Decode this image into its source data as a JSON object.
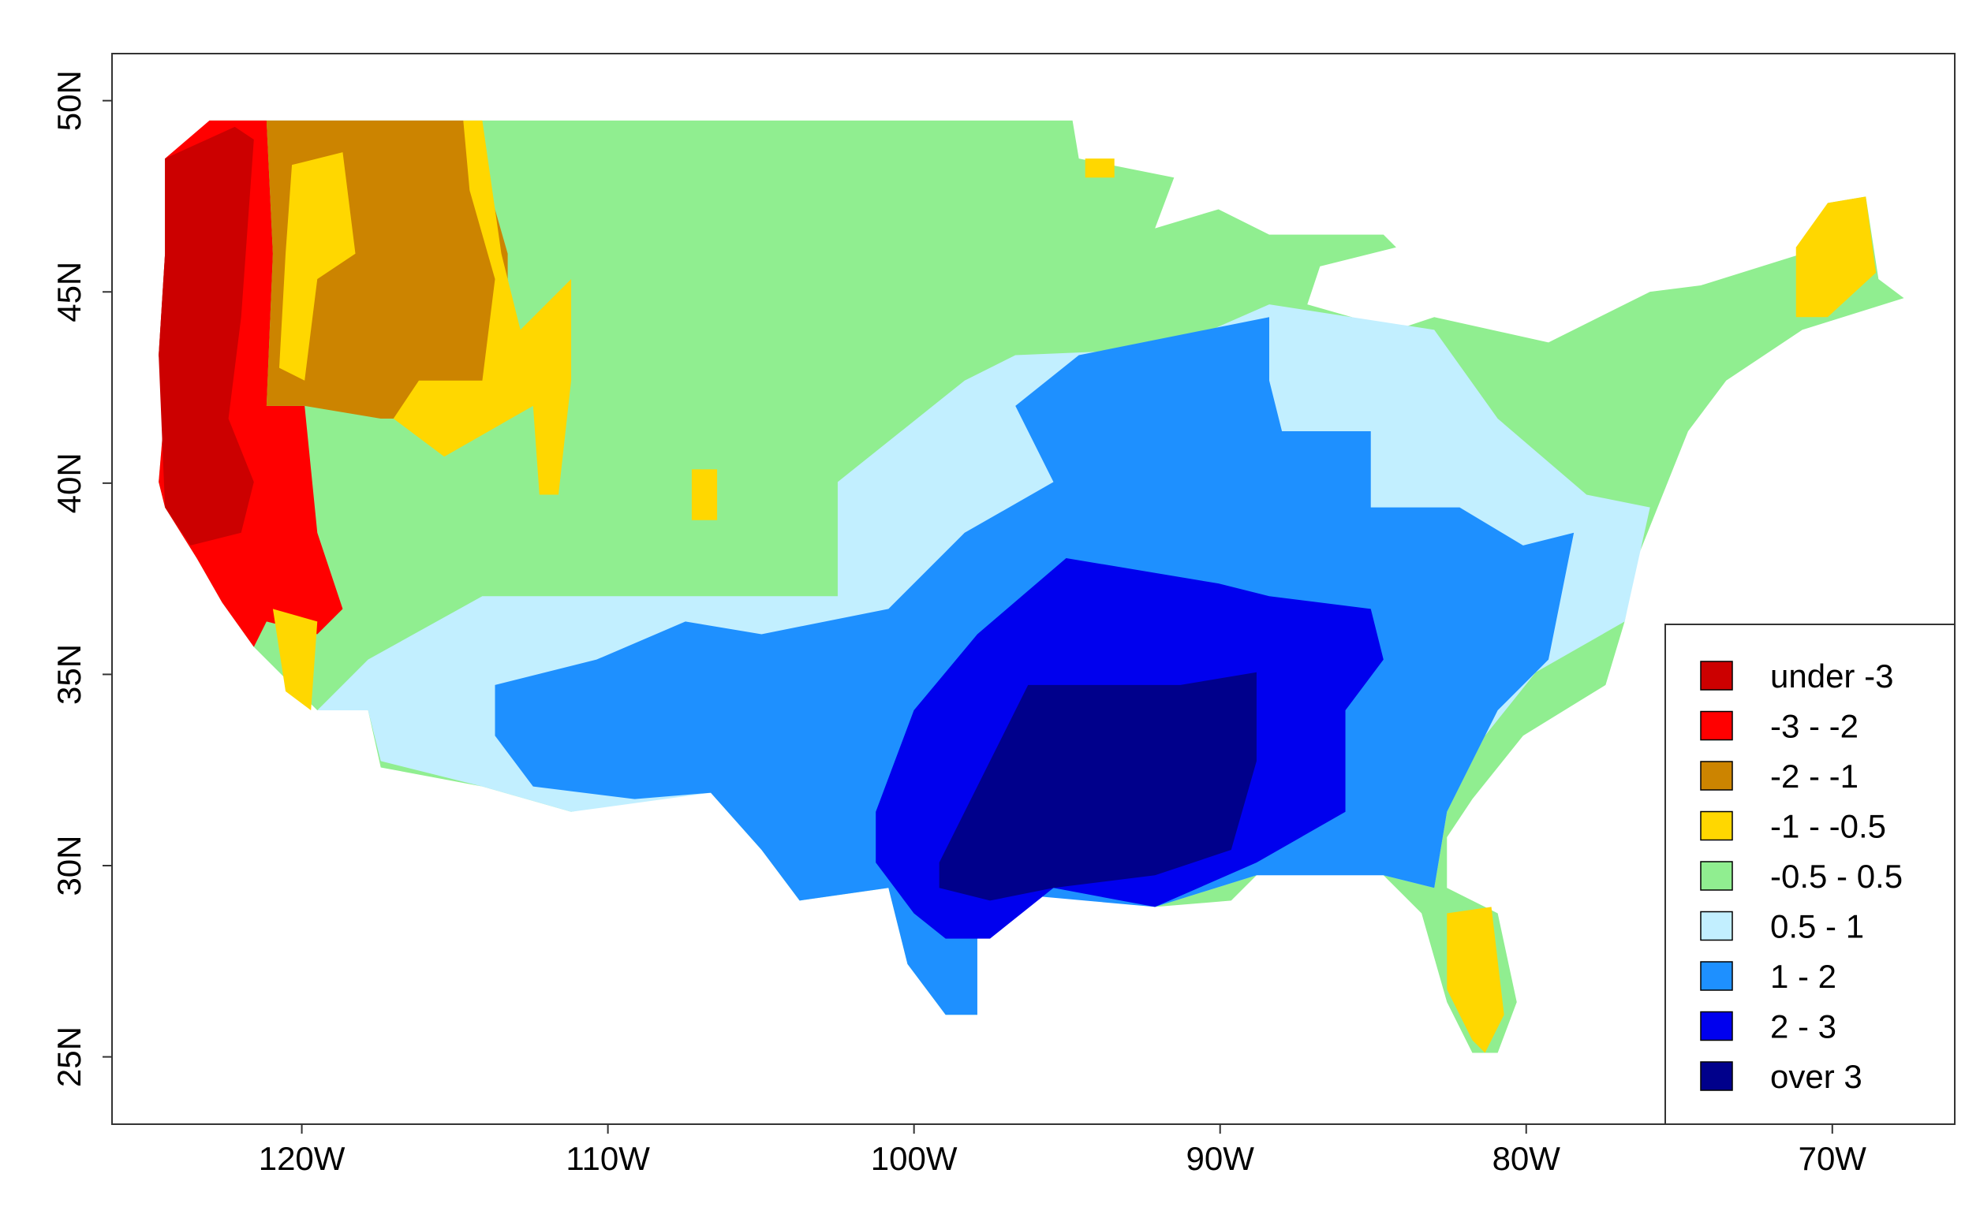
{
  "chart_data": {
    "type": "map",
    "xlim": [
      -126.2,
      -66.0
    ],
    "ylim": [
      23.24,
      51.23
    ],
    "xticks": [
      {
        "value": -120,
        "label": "120W"
      },
      {
        "value": -110,
        "label": "110W"
      },
      {
        "value": -100,
        "label": "100W"
      },
      {
        "value": -90,
        "label": "90W"
      },
      {
        "value": -80,
        "label": "80W"
      },
      {
        "value": -70,
        "label": "70W"
      }
    ],
    "yticks": [
      {
        "value": 25,
        "label": "25N"
      },
      {
        "value": 30,
        "label": "30N"
      },
      {
        "value": 35,
        "label": "35N"
      },
      {
        "value": 40,
        "label": "40N"
      },
      {
        "value": 45,
        "label": "45N"
      },
      {
        "value": 50,
        "label": "50N"
      }
    ],
    "legend": [
      {
        "label": "under -3",
        "color": "#cc0000"
      },
      {
        "label": "-3 - -2",
        "color": "#ff0000"
      },
      {
        "label": "-2 - -1",
        "color": "#cc8400"
      },
      {
        "label": "-1 - -0.5",
        "color": "#ffd700"
      },
      {
        "label": "-0.5 - 0.5",
        "color": "#90ee90"
      },
      {
        "label": "0.5 - 1",
        "color": "#c2efff"
      },
      {
        "label": "1 - 2",
        "color": "#1e90ff"
      },
      {
        "label": "2 - 3",
        "color": "#0000ee"
      },
      {
        "label": "over 3",
        "color": "#00008b"
      }
    ],
    "legend_position": "lower right"
  }
}
